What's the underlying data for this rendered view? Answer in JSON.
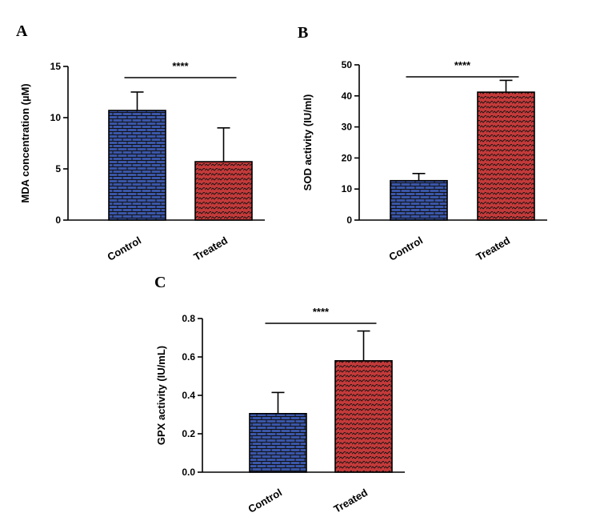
{
  "figure": {
    "background": "#ffffff"
  },
  "colors": {
    "control": "#3a56a8",
    "treated": "#c53a3a",
    "pattern_line": "#111111"
  },
  "chart_data": [
    {
      "panel": "A",
      "type": "bar",
      "categories": [
        "Control",
        "Treated"
      ],
      "values": [
        10.7,
        5.7
      ],
      "errors": [
        1.8,
        3.3
      ],
      "ylabel": "MDA concentration (µM)",
      "ylim": [
        0,
        15
      ],
      "yticks": [
        0,
        5,
        10,
        15
      ],
      "ytick_labels": [
        "0",
        "5",
        "10",
        "15"
      ],
      "significance": "****"
    },
    {
      "panel": "B",
      "type": "bar",
      "categories": [
        "Control",
        "Treated"
      ],
      "values": [
        12.7,
        41.2
      ],
      "errors": [
        2.3,
        3.8
      ],
      "ylabel": "SOD activity (IU/ml)",
      "ylim": [
        0,
        50
      ],
      "yticks": [
        0,
        10,
        20,
        30,
        40,
        50
      ],
      "ytick_labels": [
        "0",
        "10",
        "20",
        "30",
        "40",
        "50"
      ],
      "significance": "****"
    },
    {
      "panel": "C",
      "type": "bar",
      "categories": [
        "Control",
        "Treated"
      ],
      "values": [
        0.305,
        0.58
      ],
      "errors": [
        0.11,
        0.155
      ],
      "ylabel": "GPX activity (IU/mL)",
      "ylim": [
        0,
        0.8
      ],
      "yticks": [
        0,
        0.2,
        0.4,
        0.6,
        0.8
      ],
      "ytick_labels": [
        "0.0",
        "0.2",
        "0.4",
        "0.6",
        "0.8"
      ],
      "significance": "****"
    }
  ]
}
